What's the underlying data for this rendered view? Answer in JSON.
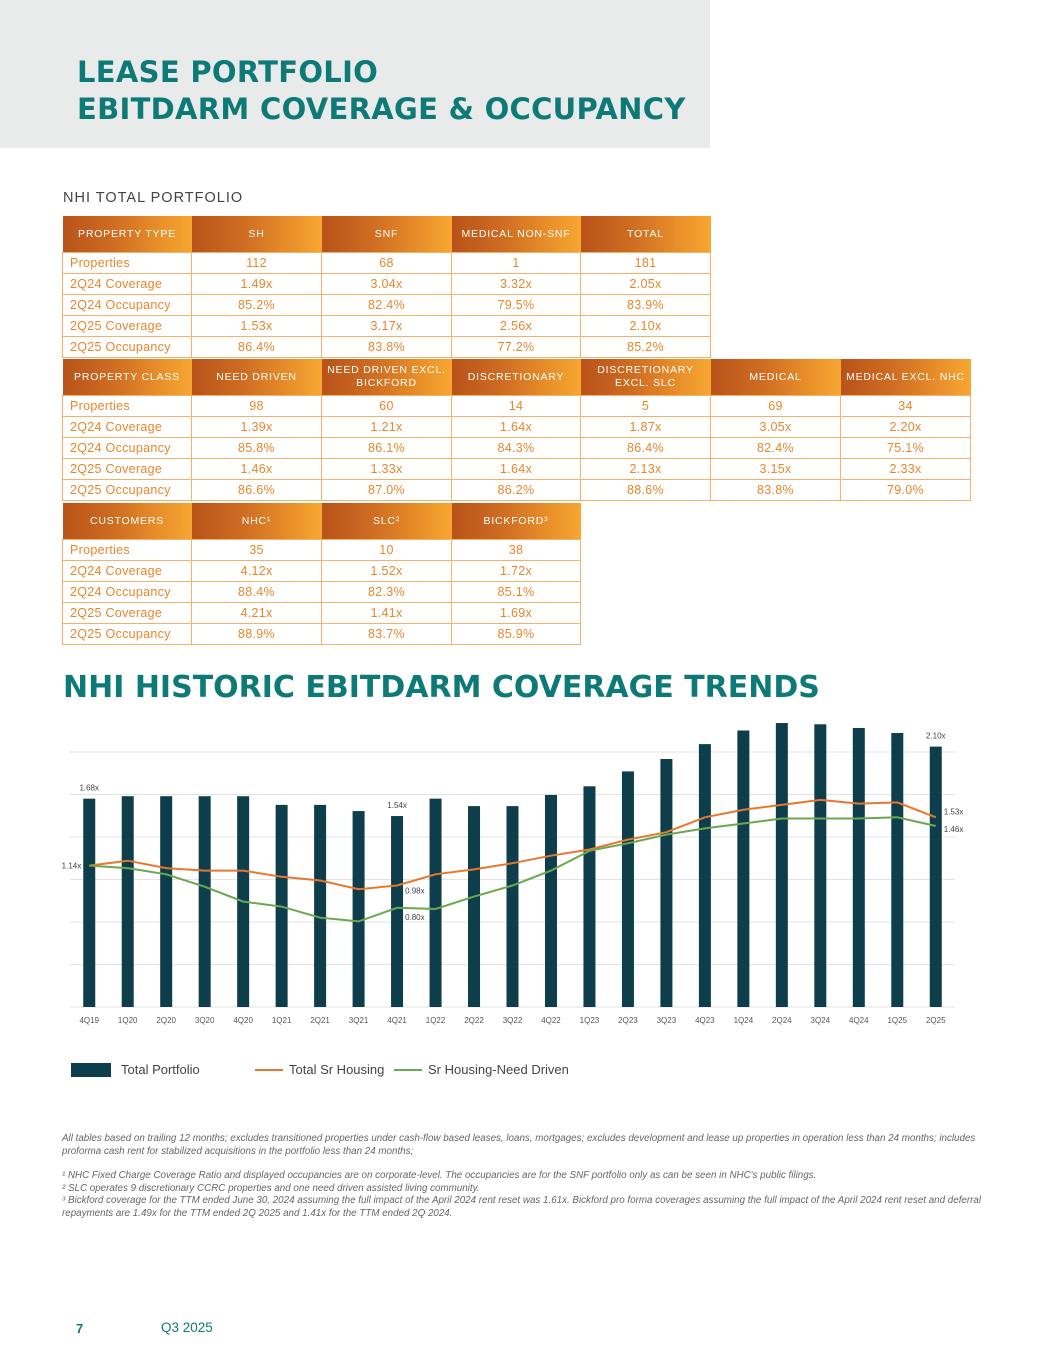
{
  "header": {
    "title_line1": "LEASE PORTFOLIO",
    "title_line2": "EBITDARM COVERAGE & OCCUPANCY"
  },
  "section_label": "NHI TOTAL PORTFOLIO",
  "table_property_type": {
    "headers": [
      "PROPERTY TYPE",
      "SH",
      "SNF",
      "MEDICAL NON-SNF",
      "TOTAL"
    ],
    "rows": [
      [
        "Properties",
        "112",
        "68",
        "1",
        "181"
      ],
      [
        "2Q24 Coverage",
        "1.49x",
        "3.04x",
        "3.32x",
        "2.05x"
      ],
      [
        "2Q24 Occupancy",
        "85.2%",
        "82.4%",
        "79.5%",
        "83.9%"
      ],
      [
        "2Q25 Coverage",
        "1.53x",
        "3.17x",
        "2.56x",
        "2.10x"
      ],
      [
        "2Q25 Occupancy",
        "86.4%",
        "83.8%",
        "77.2%",
        "85.2%"
      ]
    ]
  },
  "table_property_class": {
    "headers": [
      "PROPERTY CLASS",
      "NEED DRIVEN",
      "NEED DRIVEN EXCL. BICKFORD",
      "DISCRETIONARY",
      "DISCRETIONARY EXCL. SLC",
      "MEDICAL",
      "MEDICAL EXCL. NHC"
    ],
    "rows": [
      [
        "Properties",
        "98",
        "60",
        "14",
        "5",
        "69",
        "34"
      ],
      [
        "2Q24 Coverage",
        "1.39x",
        "1.21x",
        "1.64x",
        "1.87x",
        "3.05x",
        "2.20x"
      ],
      [
        "2Q24 Occupancy",
        "85.8%",
        "86.1%",
        "84.3%",
        "86.4%",
        "82.4%",
        "75.1%"
      ],
      [
        "2Q25 Coverage",
        "1.46x",
        "1.33x",
        "1.64x",
        "2.13x",
        "3.15x",
        "2.33x"
      ],
      [
        "2Q25 Occupancy",
        "86.6%",
        "87.0%",
        "86.2%",
        "88.6%",
        "83.8%",
        "79.0%"
      ]
    ]
  },
  "table_customers": {
    "headers": [
      "CUSTOMERS",
      "NHC¹",
      "SLC²",
      "BICKFORD³"
    ],
    "rows": [
      [
        "Properties",
        "35",
        "10",
        "38"
      ],
      [
        "2Q24 Coverage",
        "4.12x",
        "1.52x",
        "1.72x"
      ],
      [
        "2Q24 Occupancy",
        "88.4%",
        "82.3%",
        "85.1%"
      ],
      [
        "2Q25 Coverage",
        "4.21x",
        "1.41x",
        "1.69x"
      ],
      [
        "2Q25 Occupancy",
        "88.9%",
        "83.7%",
        "85.9%"
      ]
    ]
  },
  "chart_title": "NHI HISTORIC EBITDARM COVERAGE TRENDS",
  "chart_data": {
    "type": "bar",
    "title": "NHI HISTORIC EBITDARM COVERAGE TRENDS",
    "xlabel": "",
    "ylabel": "",
    "ylim": [
      0,
      2.25
    ],
    "categories": [
      "4Q19",
      "1Q20",
      "2Q20",
      "3Q20",
      "4Q20",
      "1Q21",
      "2Q21",
      "3Q21",
      "4Q21",
      "1Q22",
      "2Q22",
      "3Q22",
      "4Q22",
      "1Q23",
      "2Q23",
      "3Q23",
      "4Q23",
      "1Q24",
      "2Q24",
      "3Q24",
      "4Q24",
      "1Q25",
      "2Q25"
    ],
    "series": [
      {
        "name": "Total Portfolio",
        "kind": "bar",
        "color": "#0e3e4c",
        "values": [
          1.68,
          1.7,
          1.7,
          1.7,
          1.7,
          1.63,
          1.63,
          1.58,
          1.54,
          1.68,
          1.62,
          1.62,
          1.71,
          1.78,
          1.9,
          2.0,
          2.12,
          2.23,
          2.29,
          2.28,
          2.25,
          2.21,
          2.1
        ]
      },
      {
        "name": "Total Sr Housing",
        "kind": "line",
        "color": "#e8772e",
        "values": [
          1.14,
          1.18,
          1.12,
          1.1,
          1.1,
          1.05,
          1.02,
          0.95,
          0.98,
          1.07,
          1.11,
          1.16,
          1.22,
          1.27,
          1.35,
          1.41,
          1.53,
          1.59,
          1.63,
          1.67,
          1.64,
          1.65,
          1.53
        ]
      },
      {
        "name": "Sr Housing-Need Driven",
        "kind": "line",
        "color": "#6aa84f",
        "values": [
          1.14,
          1.12,
          1.07,
          0.97,
          0.85,
          0.81,
          0.72,
          0.69,
          0.8,
          0.79,
          0.89,
          0.98,
          1.1,
          1.26,
          1.32,
          1.39,
          1.44,
          1.48,
          1.52,
          1.52,
          1.52,
          1.53,
          1.46
        ]
      }
    ],
    "annotations": [
      {
        "label": "1.68x",
        "category": "4Q19",
        "series": "Total Portfolio"
      },
      {
        "label": "1.54x",
        "category": "4Q21",
        "series": "Total Portfolio"
      },
      {
        "label": "2.10x",
        "category": "2Q25",
        "series": "Total Portfolio"
      },
      {
        "label": "1.14x",
        "category": "4Q19",
        "series": "Total Sr Housing"
      },
      {
        "label": "0.98x",
        "category": "4Q21",
        "series": "Total Sr Housing"
      },
      {
        "label": "0.80x",
        "category": "4Q21",
        "series": "Sr Housing-Need Driven"
      },
      {
        "label": "1.53x",
        "category": "2Q25",
        "series": "Total Sr Housing"
      },
      {
        "label": "1.46x",
        "category": "2Q25",
        "series": "Sr Housing-Need Driven"
      }
    ],
    "legend": "bottom-left",
    "grid": true
  },
  "legend": {
    "total_portfolio": "Total Portfolio",
    "total_sr_housing": "Total Sr Housing",
    "sr_housing_need_driven": "Sr Housing-Need Driven"
  },
  "footnotes": {
    "main": "All tables based on trailing 12 months; excludes transitioned properties under cash-flow based leases, loans, mortgages; excludes development and lease up properties in operation less than 24 months; includes proforma cash rent for stabilized acquisitions in the portfolio less than 24 months;",
    "note1": "¹  NHC Fixed Charge Coverage Ratio and displayed occupancies are  on corporate-level. The occupancies are for the SNF portfolio only as can be seen in NHC's public filings.",
    "note2": "² SLC operates 9 discretionary CCRC properties and one need driven assisted living community.",
    "note3": "³ Bickford coverage for the TTM ended June 30, 2024 assuming the full impact of the April 2024 rent reset was 1.61x. Bickford pro forma coverages assuming the full impact of the April 2024 rent reset and deferral repayments are 1.49x for the TTM ended 2Q 2025 and 1.41x for the TTM ended 2Q 2024."
  },
  "footer": {
    "page_number": "7",
    "quarter": "Q3 2025"
  }
}
